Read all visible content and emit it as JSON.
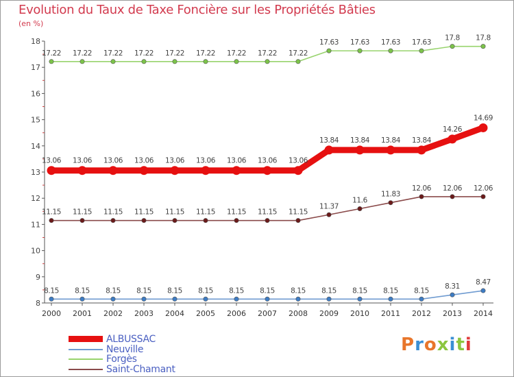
{
  "title": "Evolution du Taux de Taxe Foncière sur les Propriétés Bâties",
  "unit_label": "(en %)",
  "logo_text": "Proxiti",
  "logo_colors": [
    "#e8762b",
    "#3a8fd4",
    "#e8762b",
    "#8cc63f",
    "#3a8fd4",
    "#8cc63f",
    "#e03b3b"
  ],
  "chart_data": {
    "type": "line",
    "title": "Evolution du Taux de Taxe Foncière sur les Propriétés Bâties",
    "ylabel": "(en %)",
    "xlabel": "",
    "ylim": [
      8,
      18
    ],
    "yticks": [
      "8",
      "9",
      "10",
      "11",
      "12",
      "13",
      "14",
      "15",
      "16",
      "17",
      "18"
    ],
    "categories": [
      "2000",
      "2001",
      "2002",
      "2003",
      "2004",
      "2005",
      "2006",
      "2007",
      "2008",
      "2009",
      "2010",
      "2011",
      "2012",
      "2013",
      "2014"
    ],
    "grid": false,
    "legend_position": "bottom-left",
    "series": [
      {
        "name": "ALBUSSAC",
        "color": "#e61010",
        "marker_color": "#e61010",
        "values": [
          13.06,
          13.06,
          13.06,
          13.06,
          13.06,
          13.06,
          13.06,
          13.06,
          13.06,
          13.84,
          13.84,
          13.84,
          13.84,
          14.26,
          14.69
        ],
        "labels": [
          "13.06",
          "13.06",
          "13.06",
          "13.06",
          "13.06",
          "13.06",
          "13.06",
          "13.06",
          "13.06",
          "13.84",
          "13.84",
          "13.84",
          "13.84",
          "14.26",
          "14.69"
        ]
      },
      {
        "name": "Neuville",
        "color": "#6f9bd1",
        "marker_color": "#3d7cc4",
        "values": [
          8.15,
          8.15,
          8.15,
          8.15,
          8.15,
          8.15,
          8.15,
          8.15,
          8.15,
          8.15,
          8.15,
          8.15,
          8.15,
          8.31,
          8.47
        ],
        "labels": [
          "8.15",
          "8.15",
          "8.15",
          "8.15",
          "8.15",
          "8.15",
          "8.15",
          "8.15",
          "8.15",
          "8.15",
          "8.15",
          "8.15",
          "8.15",
          "8.31",
          "8.47"
        ]
      },
      {
        "name": "Forgès",
        "color": "#97d36c",
        "marker_color": "#7cc34a",
        "values": [
          17.22,
          17.22,
          17.22,
          17.22,
          17.22,
          17.22,
          17.22,
          17.22,
          17.22,
          17.63,
          17.63,
          17.63,
          17.63,
          17.8,
          17.8
        ],
        "labels": [
          "17.22",
          "17.22",
          "17.22",
          "17.22",
          "17.22",
          "17.22",
          "17.22",
          "17.22",
          "17.22",
          "17.63",
          "17.63",
          "17.63",
          "17.63",
          "17.8",
          "17.8"
        ]
      },
      {
        "name": "Saint-Chamant",
        "color": "#8a4a4a",
        "marker_color": "#6b1a1a",
        "values": [
          11.15,
          11.15,
          11.15,
          11.15,
          11.15,
          11.15,
          11.15,
          11.15,
          11.15,
          11.37,
          11.6,
          11.83,
          12.06,
          12.06,
          12.06
        ],
        "labels": [
          "11.15",
          "11.15",
          "11.15",
          "11.15",
          "11.15",
          "11.15",
          "11.15",
          "11.15",
          "11.15",
          "11.37",
          "11.6",
          "11.83",
          "12.06",
          "12.06",
          "12.06"
        ]
      }
    ]
  }
}
